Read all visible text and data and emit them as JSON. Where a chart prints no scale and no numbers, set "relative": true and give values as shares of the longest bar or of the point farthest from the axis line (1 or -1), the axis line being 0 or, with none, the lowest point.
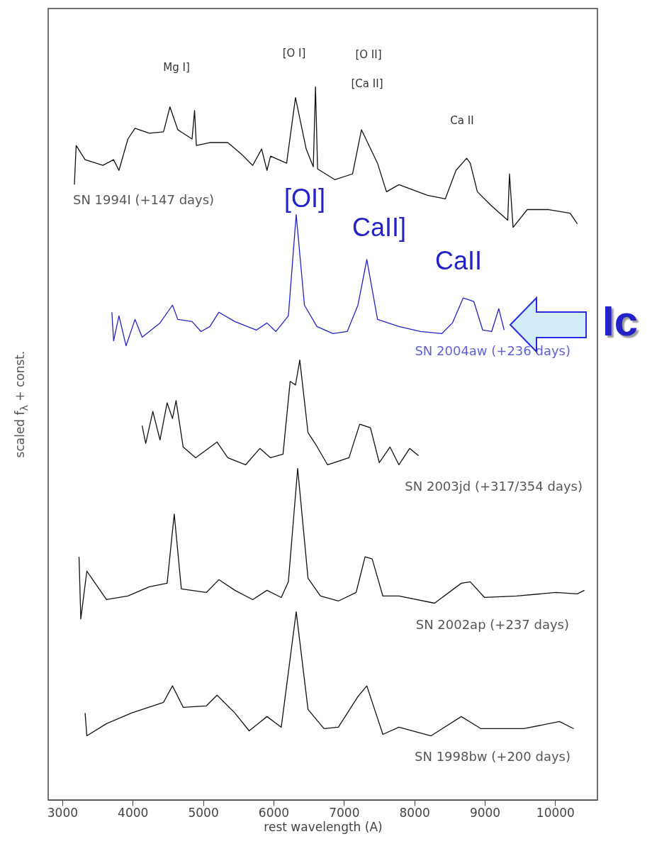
{
  "chart_data": {
    "type": "line",
    "relative": true,
    "xlabel": "rest wavelength (A)",
    "ylabel": "scaled f$_{λ}$ + const.",
    "xlim": [
      2800,
      10600
    ],
    "xticks": [
      3000,
      4000,
      5000,
      6000,
      7000,
      8000,
      9000,
      10000
    ],
    "grid": false,
    "series": [
      {
        "name": "SN 1994I (+147 days)",
        "color": "#111111",
        "x": [
          3172,
          3197,
          3324,
          3577,
          3729,
          3805,
          3932,
          4033,
          4236,
          4438,
          4529,
          4641,
          4843,
          4879,
          4904,
          5097,
          5350,
          5552,
          5704,
          5831,
          5907,
          5958,
          6186,
          6312,
          6464,
          6565,
          6596,
          6626,
          6869,
          7122,
          7249,
          7477,
          7604,
          7781,
          8186,
          8439,
          8591,
          8743,
          8794,
          8895,
          9098,
          9326,
          9351,
          9402,
          9604,
          9908,
          10212,
          10314
        ],
        "values": [
          0.863,
          0.918,
          0.898,
          0.89,
          0.898,
          0.883,
          0.927,
          0.942,
          0.935,
          0.937,
          0.972,
          0.94,
          0.927,
          0.967,
          0.918,
          0.922,
          0.922,
          0.905,
          0.89,
          0.913,
          0.883,
          0.903,
          0.893,
          0.985,
          0.913,
          0.888,
          1,
          0.885,
          0.87,
          0.878,
          0.94,
          0.893,
          0.853,
          0.863,
          0.848,
          0.843,
          0.883,
          0.9,
          0.893,
          0.853,
          0.833,
          0.813,
          0.878,
          0.803,
          0.828,
          0.828,
          0.823,
          0.808
        ]
      },
      {
        "name": "SN 2004aw (+236 days)",
        "color": "#2222c8",
        "x": [
          3704,
          3729,
          3805,
          3906,
          4033,
          4134,
          4388,
          4565,
          4641,
          4843,
          4970,
          5097,
          5223,
          5451,
          5755,
          5907,
          6034,
          6211,
          6322,
          6439,
          6616,
          6844,
          7047,
          7199,
          7325,
          7477,
          7781,
          8085,
          8389,
          8541,
          8693,
          8845,
          8971,
          9098,
          9199,
          9275
        ],
        "values": [
          0.684,
          0.644,
          0.679,
          0.637,
          0.674,
          0.649,
          0.669,
          0.694,
          0.674,
          0.671,
          0.657,
          0.664,
          0.684,
          0.671,
          0.659,
          0.669,
          0.657,
          0.679,
          0.821,
          0.694,
          0.664,
          0.654,
          0.657,
          0.694,
          0.758,
          0.674,
          0.664,
          0.657,
          0.654,
          0.669,
          0.704,
          0.699,
          0.659,
          0.657,
          0.689,
          0.659
        ]
      },
      {
        "name": "SN 2003jd (+317/354 days)",
        "color": "#111111",
        "x": [
          4134,
          4185,
          4286,
          4388,
          4489,
          4565,
          4616,
          4717,
          4894,
          5198,
          5350,
          5603,
          5806,
          5958,
          6135,
          6236,
          6312,
          6373,
          6490,
          6591,
          6768,
          7072,
          7224,
          7376,
          7502,
          7654,
          7781,
          7933,
          8060
        ],
        "values": [
          0.525,
          0.5,
          0.545,
          0.505,
          0.557,
          0.535,
          0.56,
          0.495,
          0.48,
          0.502,
          0.48,
          0.47,
          0.493,
          0.48,
          0.485,
          0.587,
          0.582,
          0.617,
          0.515,
          0.5,
          0.47,
          0.48,
          0.527,
          0.522,
          0.473,
          0.495,
          0.47,
          0.493,
          0.483
        ]
      },
      {
        "name": "SN 2002ap (+237 days)",
        "color": "#111111",
        "x": [
          3238,
          3263,
          3349,
          3628,
          3932,
          4236,
          4489,
          4590,
          4691,
          5046,
          5223,
          5451,
          5704,
          5907,
          6110,
          6211,
          6343,
          6490,
          6667,
          6920,
          7173,
          7300,
          7401,
          7553,
          7781,
          8287,
          8667,
          8794,
          8997,
          9452,
          10010,
          10314,
          10415
        ],
        "values": [
          0.341,
          0.254,
          0.321,
          0.281,
          0.286,
          0.299,
          0.304,
          0.401,
          0.296,
          0.291,
          0.309,
          0.294,
          0.281,
          0.294,
          0.284,
          0.306,
          0.465,
          0.311,
          0.286,
          0.279,
          0.291,
          0.341,
          0.338,
          0.286,
          0.286,
          0.276,
          0.304,
          0.306,
          0.284,
          0.286,
          0.291,
          0.289,
          0.294
        ]
      },
      {
        "name": "SN 1998bw (+200 days)",
        "color": "#111111",
        "x": [
          3324,
          3349,
          3628,
          3982,
          4438,
          4565,
          4717,
          5046,
          5198,
          5451,
          5654,
          5907,
          6110,
          6322,
          6490,
          6717,
          6920,
          7199,
          7325,
          7553,
          7781,
          8237,
          8667,
          8946,
          9554,
          10060,
          10263
        ],
        "values": [
          0.122,
          0.09,
          0.107,
          0.122,
          0.137,
          0.16,
          0.13,
          0.132,
          0.147,
          0.122,
          0.097,
          0.117,
          0.102,
          0.264,
          0.127,
          0.1,
          0.102,
          0.145,
          0.16,
          0.092,
          0.102,
          0.09,
          0.117,
          0.1,
          0.1,
          0.11,
          0.1
        ]
      }
    ],
    "annotations": [
      "Mg I]",
      "[O I]",
      "[O II]",
      "[Ca II]",
      "Ca II",
      "[OI]",
      "CaII]",
      "CaII",
      "Ic"
    ]
  }
}
